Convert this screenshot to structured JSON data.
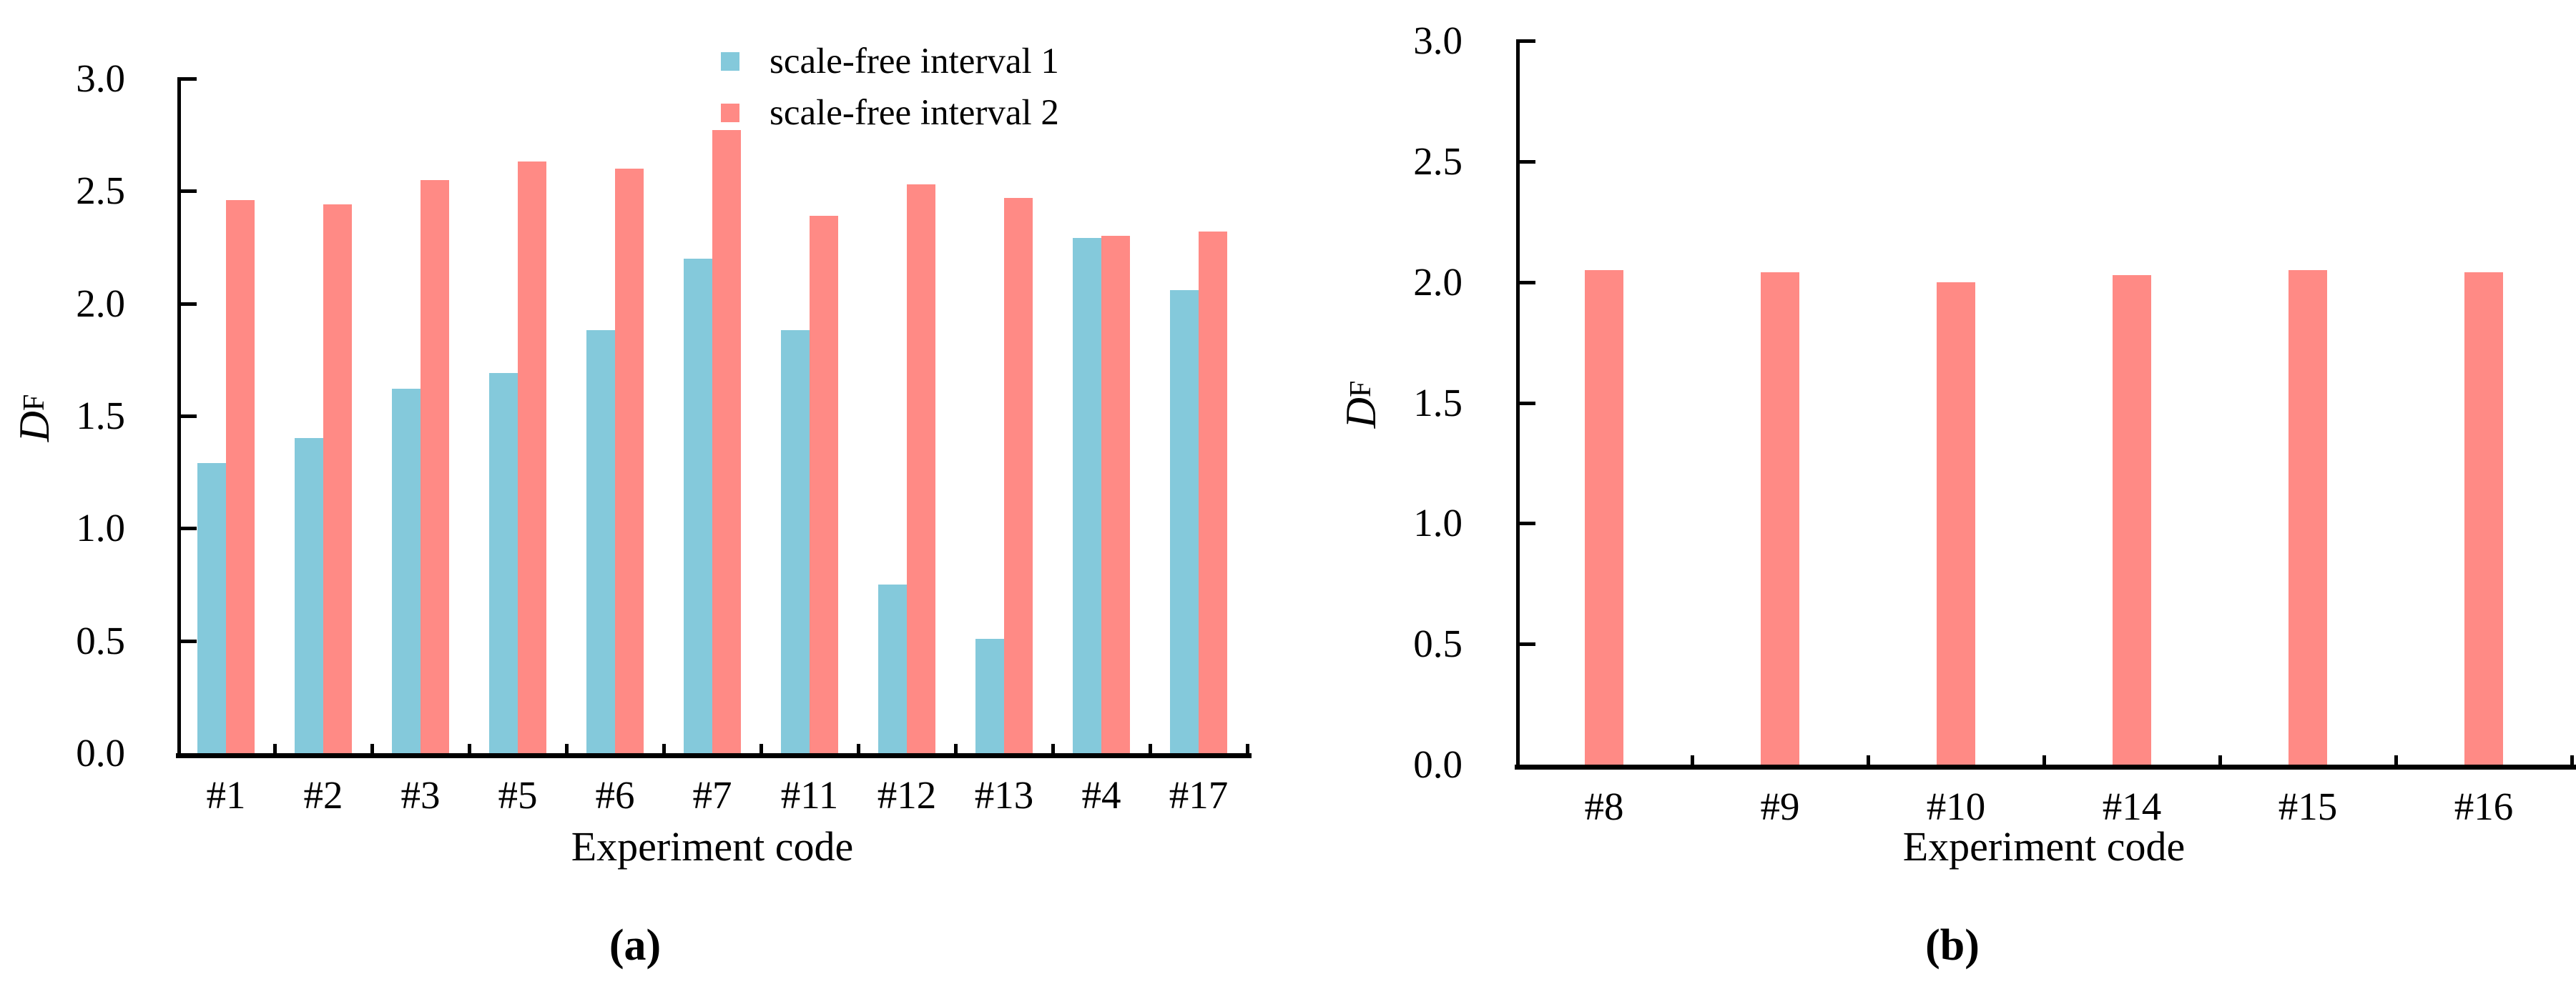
{
  "figure": {
    "background": "#FFFFFF"
  },
  "chart_data": [
    {
      "id": "a",
      "type": "bar",
      "title": "",
      "categories": [
        "#1",
        "#2",
        "#3",
        "#5",
        "#6",
        "#7",
        "#11",
        "#12",
        "#13",
        "#4",
        "#17"
      ],
      "series": [
        {
          "name": "scale-free interval 1",
          "color": "#84C9DB",
          "values": [
            1.29,
            1.4,
            1.62,
            1.69,
            1.88,
            2.2,
            1.88,
            0.75,
            0.51,
            2.29,
            2.06
          ]
        },
        {
          "name": "scale-free interval 2",
          "color": "#FF8A85",
          "values": [
            2.46,
            2.44,
            2.55,
            2.63,
            2.6,
            2.77,
            2.39,
            2.53,
            2.47,
            2.3,
            2.32
          ]
        }
      ],
      "xlabel": "Experiment code",
      "ylabel": {
        "base": "D",
        "sub": "F"
      },
      "ylim": [
        0,
        3
      ],
      "ytick_step": 0.5,
      "yticks": [
        "0.0",
        "0.5",
        "1.0",
        "1.5",
        "2.0",
        "2.5",
        "3.0"
      ],
      "grid": false,
      "legend": true,
      "legend_position": "top-center-inside",
      "caption": "(a)"
    },
    {
      "id": "b",
      "type": "bar",
      "title": "",
      "categories": [
        "#8",
        "#9",
        "#10",
        "#14",
        "#15",
        "#16"
      ],
      "series": [
        {
          "name": "scale-free interval 2",
          "color": "#FF8A85",
          "values": [
            2.05,
            2.04,
            2.0,
            2.03,
            2.05,
            2.04
          ]
        }
      ],
      "xlabel": "Experiment code",
      "ylabel": {
        "base": "D",
        "sub": "F"
      },
      "ylim": [
        0,
        3
      ],
      "ytick_step": 0.5,
      "yticks": [
        "0.0",
        "0.5",
        "1.0",
        "1.5",
        "2.0",
        "2.5",
        "3.0"
      ],
      "grid": false,
      "legend": false,
      "legend_position": "none",
      "caption": "(b)"
    }
  ]
}
